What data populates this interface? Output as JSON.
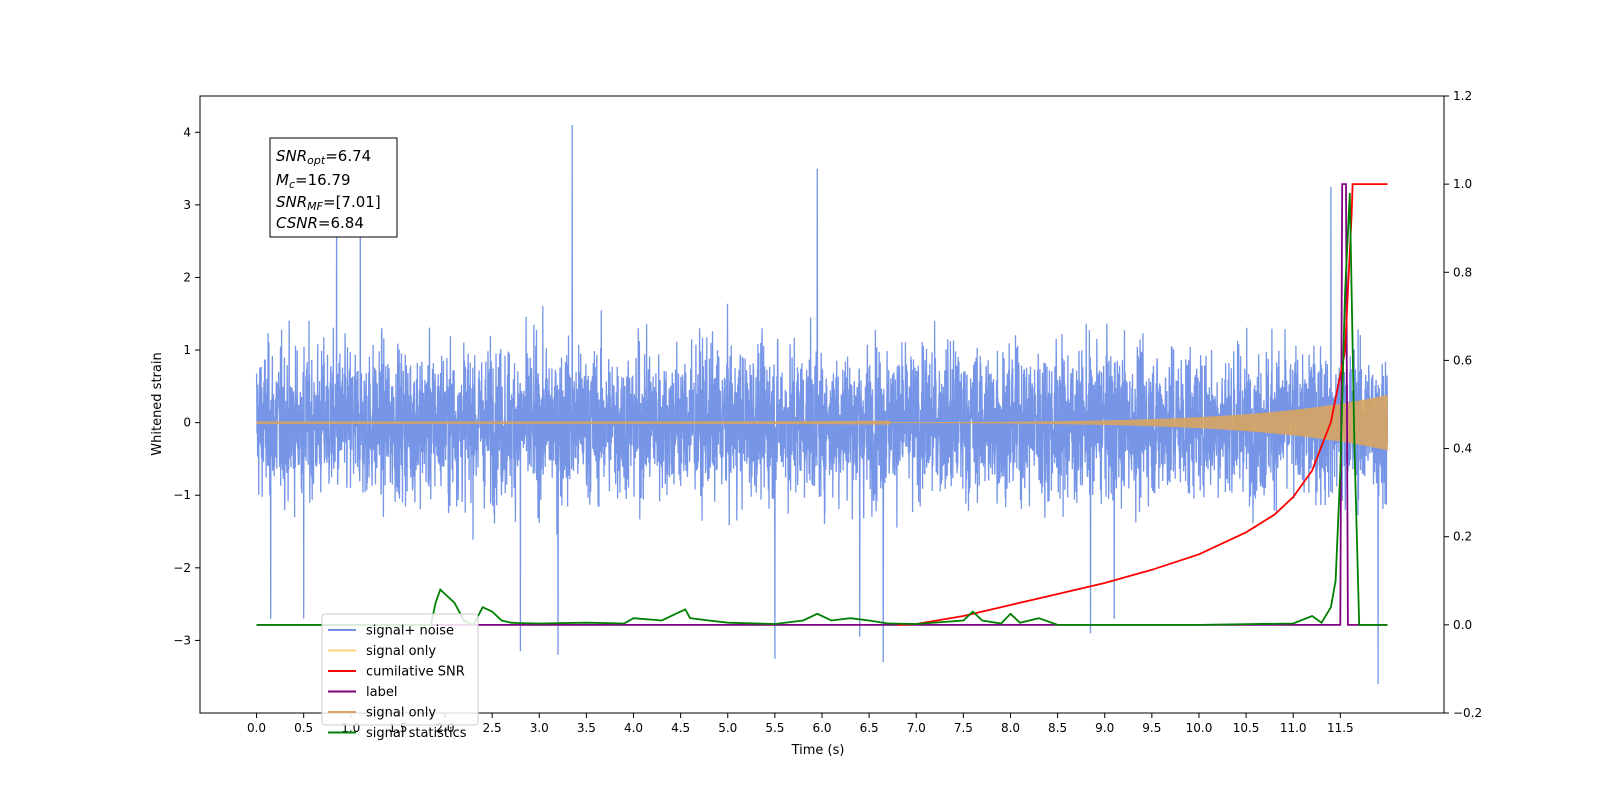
{
  "chart_data": {
    "type": "line",
    "xlabel": "Time (s)",
    "ylabel": "Whitened strain",
    "xlim": [
      -0.6,
      12.6
    ],
    "ylim": [
      -4.0,
      4.5
    ],
    "y2lim": [
      -0.2,
      1.2
    ],
    "x_ticks": [
      "0.0",
      "0.5",
      "1.0",
      "1.5",
      "2.0",
      "2.5",
      "3.0",
      "3.5",
      "4.0",
      "4.5",
      "5.0",
      "5.5",
      "6.0",
      "6.5",
      "7.0",
      "7.5",
      "8.0",
      "8.5",
      "9.0",
      "9.5",
      "10.0",
      "10.5",
      "11.0",
      "11.5"
    ],
    "y_ticks": [
      "4",
      "3",
      "2",
      "1",
      "0",
      "−1",
      "−2",
      "−3"
    ],
    "y2_ticks": [
      "1.2",
      "1.0",
      "0.8",
      "0.6",
      "0.4",
      "0.2",
      "0.0",
      "−0.2"
    ],
    "annotation": {
      "snr_opt": {
        "label": "SNR",
        "sub": "opt",
        "value": "=6.74"
      },
      "mc": {
        "label": "M",
        "sub": "c",
        "value": "=16.79"
      },
      "snr_mf": {
        "label": "SNR",
        "sub": "MF",
        "value": "=[7.01]"
      },
      "csnr": {
        "label": "CSNR",
        "value": "=6.84"
      }
    },
    "legend": {
      "location": "lower-left",
      "entries": [
        {
          "label": "signal+ noise",
          "color": "#6f8fe6"
        },
        {
          "label": "signal only",
          "color": "#ffd27a"
        },
        {
          "label": "cumilative SNR",
          "color": "#ff0000"
        },
        {
          "label": "label",
          "color": "#800080"
        },
        {
          "label": "signal only",
          "color": "#d9a460"
        },
        {
          "label": "signal statistics",
          "color": "#008000"
        }
      ]
    },
    "series": [
      {
        "name": "signal+ noise",
        "axis": "left",
        "color": "#6f8fe6",
        "x_range": [
          0.0,
          12.0
        ],
        "noise_envelope": [
          -1.8,
          1.8
        ],
        "spikes": [
          {
            "x": 3.35,
            "y": 4.1
          },
          {
            "x": 5.95,
            "y": 3.5
          },
          {
            "x": 11.9,
            "y": -3.6
          },
          {
            "x": 6.65,
            "y": -3.3
          },
          {
            "x": 5.5,
            "y": -3.25
          },
          {
            "x": 3.2,
            "y": -3.2
          },
          {
            "x": 2.8,
            "y": -3.15
          },
          {
            "x": 0.85,
            "y": 3.2
          },
          {
            "x": 1.1,
            "y": 3.1
          },
          {
            "x": 11.4,
            "y": 3.25
          },
          {
            "x": 0.15,
            "y": -2.7
          },
          {
            "x": 0.5,
            "y": -2.7
          },
          {
            "x": 8.85,
            "y": -2.9
          },
          {
            "x": 9.1,
            "y": -2.7
          },
          {
            "x": 6.4,
            "y": -2.95
          }
        ]
      },
      {
        "name": "signal only",
        "axis": "left",
        "color": "#d9a460",
        "x_range": [
          0.0,
          12.0
        ],
        "chirp_start_amp": 0.003,
        "chirp_end_amp": 0.38
      },
      {
        "name": "cumilative SNR",
        "axis": "right",
        "color": "#ff0000",
        "x": [
          6.8,
          7.0,
          7.5,
          8.0,
          8.5,
          9.0,
          9.5,
          10.0,
          10.5,
          10.8,
          11.0,
          11.2,
          11.4,
          11.55,
          11.62,
          11.63,
          12.0
        ],
        "y": [
          0.0,
          0.002,
          0.02,
          0.045,
          0.07,
          0.095,
          0.125,
          0.16,
          0.21,
          0.25,
          0.29,
          0.35,
          0.46,
          0.62,
          0.93,
          1.0,
          1.0
        ]
      },
      {
        "name": "label",
        "axis": "right",
        "color": "#800080",
        "x": [
          0.0,
          11.5,
          11.52,
          11.56,
          11.58,
          12.0
        ],
        "y": [
          0.0,
          0.0,
          1.0,
          1.0,
          0.0,
          0.0
        ]
      },
      {
        "name": "signal statistics",
        "axis": "right",
        "color": "#008000",
        "x": [
          0.0,
          1.85,
          1.9,
          1.95,
          2.0,
          2.1,
          2.2,
          2.3,
          2.4,
          2.5,
          2.6,
          2.7,
          2.8,
          3.0,
          3.5,
          3.9,
          4.0,
          4.3,
          4.5,
          4.55,
          4.6,
          4.8,
          5.0,
          5.5,
          5.8,
          5.95,
          6.1,
          6.3,
          6.5,
          6.7,
          7.0,
          7.5,
          7.6,
          7.7,
          7.9,
          8.0,
          8.1,
          8.3,
          8.5,
          8.6,
          10.0,
          11.0,
          11.2,
          11.3,
          11.4,
          11.45,
          11.5,
          11.55,
          11.6,
          11.65,
          11.7,
          12.0
        ],
        "y": [
          0.0,
          0.0,
          0.05,
          0.08,
          0.07,
          0.05,
          0.01,
          0.0,
          0.04,
          0.03,
          0.01,
          0.005,
          0.004,
          0.003,
          0.005,
          0.003,
          0.015,
          0.01,
          0.03,
          0.035,
          0.015,
          0.01,
          0.005,
          0.002,
          0.01,
          0.025,
          0.01,
          0.015,
          0.01,
          0.003,
          0.002,
          0.01,
          0.03,
          0.01,
          0.003,
          0.025,
          0.005,
          0.015,
          0.0,
          0.0,
          0.0,
          0.003,
          0.02,
          0.005,
          0.04,
          0.1,
          0.35,
          0.75,
          0.98,
          0.4,
          0.0,
          0.0
        ]
      }
    ]
  }
}
